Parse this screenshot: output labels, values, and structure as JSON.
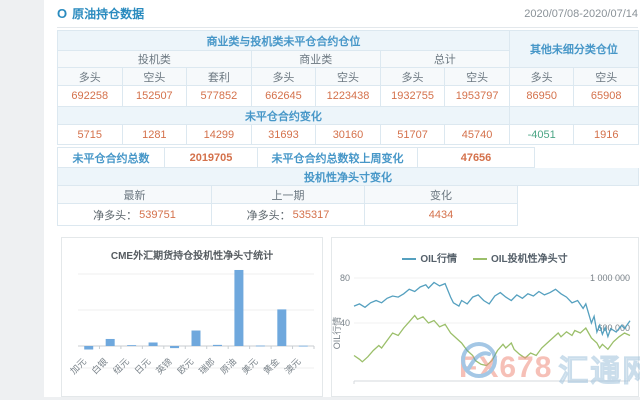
{
  "page": {
    "title": "原油持仓数据",
    "title_icon": "O",
    "date_range": "2020/07/08-2020/07/14"
  },
  "colors": {
    "accent_blue": "#2a8bbf",
    "value_orange": "#d4714b",
    "negative_green": "#4ba585",
    "bar_blue": "#6fa8dd",
    "line_blue": "#55a0bf",
    "line_green": "#9bbf6a"
  },
  "table": {
    "section_header": "商业类与投机类未平仓合约仓位",
    "other_header": "其他未细分类仓位",
    "group_headers": [
      "投机类",
      "商业类",
      "总计"
    ],
    "col_headers": [
      "多头",
      "空头",
      "套利",
      "多头",
      "空头",
      "多头",
      "空头",
      "多头",
      "空头"
    ],
    "positions": [
      "692258",
      "152507",
      "577852",
      "662645",
      "1223438",
      "1932755",
      "1953797",
      "86950",
      "65908"
    ],
    "change_banner": "未平仓合约变化",
    "changes": [
      "5715",
      "1281",
      "14299",
      "31693",
      "30160",
      "51707",
      "45740",
      "-4051",
      "1916"
    ],
    "total_label": "未平仓合约总数",
    "total_value": "2019705",
    "total_change_label": "未平仓合约总数较上周变化",
    "total_change_value": "47656",
    "net_banner": "投机性净头寸变化",
    "net_col_headers": [
      "最新",
      "上一期",
      "变化"
    ],
    "net_latest_label": "净多头：",
    "net_latest_value": "539751",
    "net_prev_label": "净多头：",
    "net_prev_value": "535317",
    "net_change_value": "4434"
  },
  "chart_data": [
    {
      "type": "bar",
      "title": "CME外汇期货持仓投机性净头寸统计",
      "categories": [
        "加元",
        "白银",
        "纽元",
        "日元",
        "英镑",
        "欧元",
        "瑞郎",
        "原油",
        "美元",
        "黄金",
        "澳元"
      ],
      "values": [
        -25000,
        50000,
        6000,
        25000,
        -15000,
        110000,
        8000,
        539751,
        3000,
        260000,
        2000
      ],
      "xlabel": "",
      "ylabel": "",
      "ylim": [
        -60000,
        620000
      ],
      "grid": true,
      "legend_position": "none",
      "bar_color": "#6fa8dd"
    },
    {
      "type": "line",
      "title": "",
      "legend": [
        "OIL行情",
        "OIL投机性净头寸"
      ],
      "legend_position": "top",
      "y_left": {
        "title": "OIL行情",
        "ticks": [
          80,
          40
        ]
      },
      "y_right": {
        "ticks": [
          "1 000 000",
          "600 000"
        ]
      },
      "series": [
        {
          "name": "OIL行情",
          "color": "#55a0bf",
          "axis": "price",
          "points": [
            [
              0,
              55
            ],
            [
              2,
              57
            ],
            [
              4,
              54
            ],
            [
              6,
              58
            ],
            [
              8,
              60
            ],
            [
              10,
              58
            ],
            [
              12,
              62
            ],
            [
              14,
              64
            ],
            [
              16,
              63
            ],
            [
              18,
              66
            ],
            [
              20,
              70
            ],
            [
              22,
              68
            ],
            [
              24,
              72
            ],
            [
              26,
              74
            ],
            [
              27,
              71
            ],
            [
              29,
              76
            ],
            [
              31,
              73
            ],
            [
              33,
              75
            ],
            [
              35,
              63
            ],
            [
              36,
              58
            ],
            [
              38,
              55
            ],
            [
              39,
              60
            ],
            [
              41,
              57
            ],
            [
              43,
              63
            ],
            [
              45,
              65
            ],
            [
              47,
              60
            ],
            [
              49,
              57
            ],
            [
              51,
              64
            ],
            [
              53,
              67
            ],
            [
              55,
              63
            ],
            [
              57,
              60
            ],
            [
              59,
              65
            ],
            [
              61,
              62
            ],
            [
              63,
              66
            ],
            [
              65,
              64
            ],
            [
              67,
              68
            ],
            [
              69,
              65
            ],
            [
              71,
              67
            ],
            [
              73,
              70
            ],
            [
              75,
              66
            ],
            [
              77,
              63
            ],
            [
              79,
              58
            ],
            [
              81,
              60
            ],
            [
              83,
              53
            ],
            [
              84,
              57
            ],
            [
              86,
              40
            ],
            [
              87,
              46
            ],
            [
              88,
              32
            ],
            [
              89,
              38
            ],
            [
              90,
              30
            ],
            [
              91,
              36
            ],
            [
              92,
              28
            ],
            [
              93,
              35
            ],
            [
              95,
              32
            ],
            [
              97,
              38
            ],
            [
              98,
              35
            ],
            [
              100,
              42
            ]
          ]
        },
        {
          "name": "OIL投机性净头寸",
          "color": "#9bbf6a",
          "axis": "position",
          "points": [
            [
              0,
              380000
            ],
            [
              2,
              350000
            ],
            [
              3,
              330000
            ],
            [
              5,
              370000
            ],
            [
              7,
              420000
            ],
            [
              9,
              460000
            ],
            [
              10,
              440000
            ],
            [
              12,
              500000
            ],
            [
              14,
              560000
            ],
            [
              16,
              540000
            ],
            [
              18,
              600000
            ],
            [
              20,
              650000
            ],
            [
              22,
              700000
            ],
            [
              23,
              670000
            ],
            [
              25,
              690000
            ],
            [
              27,
              640000
            ],
            [
              29,
              660000
            ],
            [
              31,
              610000
            ],
            [
              33,
              630000
            ],
            [
              35,
              560000
            ],
            [
              37,
              520000
            ],
            [
              39,
              480000
            ],
            [
              41,
              420000
            ],
            [
              43,
              380000
            ],
            [
              44,
              340000
            ],
            [
              46,
              310000
            ],
            [
              48,
              300000
            ],
            [
              50,
              340000
            ],
            [
              52,
              420000
            ],
            [
              54,
              470000
            ],
            [
              55,
              440000
            ],
            [
              57,
              480000
            ],
            [
              58,
              430000
            ],
            [
              60,
              390000
            ],
            [
              62,
              360000
            ],
            [
              64,
              400000
            ],
            [
              66,
              380000
            ],
            [
              68,
              440000
            ],
            [
              70,
              480000
            ],
            [
              72,
              520000
            ],
            [
              74,
              560000
            ],
            [
              75,
              530000
            ],
            [
              77,
              570000
            ],
            [
              79,
              540000
            ],
            [
              80,
              580000
            ],
            [
              82,
              560000
            ],
            [
              84,
              600000
            ],
            [
              85,
              560000
            ],
            [
              86,
              520000
            ],
            [
              88,
              480000
            ],
            [
              89,
              440000
            ],
            [
              90,
              470000
            ],
            [
              92,
              430000
            ],
            [
              94,
              490000
            ],
            [
              96,
              530000
            ],
            [
              98,
              560000
            ],
            [
              100,
              540000
            ]
          ]
        }
      ]
    }
  ],
  "watermark": {
    "brand": "FX678",
    "site": "汇通网"
  }
}
